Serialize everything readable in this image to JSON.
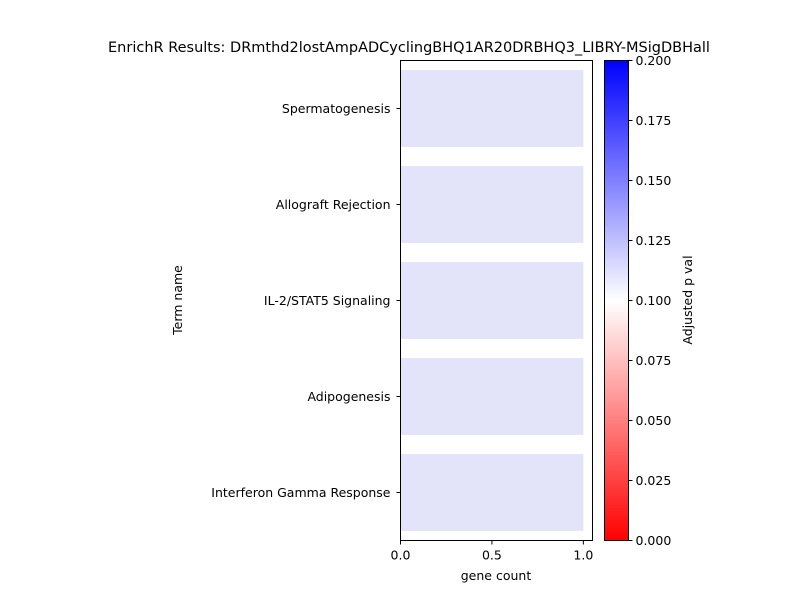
{
  "chart_data": {
    "type": "bar",
    "orientation": "horizontal",
    "title": "EnrichR Results: DRmthd2lostAmpADCyclingBHQ1AR20DRBHQ3_LIBRY-MSigDBHall",
    "xlabel": "gene count",
    "ylabel": "Term name",
    "categories": [
      "Spermatogenesis",
      "Allograft Rejection",
      "IL-2/STAT5 Signaling",
      "Adipogenesis",
      "Interferon Gamma Response"
    ],
    "values": [
      1,
      1,
      1,
      1,
      1
    ],
    "xlim": [
      0,
      1.05
    ],
    "xticks": [
      "0.0",
      "0.5",
      "1.0"
    ],
    "bar_color": "#e3e3f9",
    "colorbar": {
      "label": "Adjusted p val",
      "range": [
        0.0,
        0.2
      ],
      "ticks": [
        "0.000",
        "0.025",
        "0.050",
        "0.075",
        "0.100",
        "0.125",
        "0.150",
        "0.175",
        "0.200"
      ],
      "colors": [
        "#ff0000",
        "#ffffff",
        "#0000ff"
      ]
    },
    "grid": false,
    "legend": "colorbar-right"
  }
}
